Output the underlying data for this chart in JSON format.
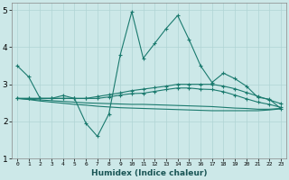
{
  "xlabel": "Humidex (Indice chaleur)",
  "x": [
    0,
    1,
    2,
    3,
    4,
    5,
    6,
    7,
    8,
    9,
    10,
    11,
    12,
    13,
    14,
    15,
    16,
    17,
    18,
    19,
    20,
    21,
    22,
    23
  ],
  "line1": [
    3.5,
    3.2,
    2.62,
    2.62,
    2.7,
    2.62,
    1.95,
    1.6,
    2.2,
    3.8,
    4.95,
    3.7,
    4.1,
    4.5,
    4.85,
    4.2,
    3.5,
    3.05,
    3.3,
    3.15,
    2.95,
    2.65,
    2.6,
    2.35
  ],
  "line2": [
    2.62,
    2.62,
    2.62,
    2.62,
    2.62,
    2.62,
    2.62,
    2.67,
    2.72,
    2.77,
    2.83,
    2.87,
    2.91,
    2.95,
    3.0,
    3.0,
    3.0,
    3.0,
    2.95,
    2.88,
    2.78,
    2.68,
    2.58,
    2.48
  ],
  "line3": [
    2.62,
    2.62,
    2.62,
    2.62,
    2.62,
    2.62,
    2.62,
    2.62,
    2.66,
    2.71,
    2.75,
    2.76,
    2.81,
    2.86,
    2.9,
    2.9,
    2.87,
    2.86,
    2.8,
    2.71,
    2.61,
    2.52,
    2.46,
    2.38
  ],
  "line4": [
    2.62,
    2.6,
    2.58,
    2.56,
    2.54,
    2.52,
    2.5,
    2.49,
    2.48,
    2.47,
    2.46,
    2.46,
    2.45,
    2.44,
    2.43,
    2.42,
    2.41,
    2.4,
    2.38,
    2.36,
    2.35,
    2.33,
    2.33,
    2.35
  ],
  "line5": [
    2.62,
    2.59,
    2.55,
    2.52,
    2.49,
    2.46,
    2.44,
    2.41,
    2.39,
    2.37,
    2.36,
    2.35,
    2.34,
    2.33,
    2.32,
    2.31,
    2.3,
    2.29,
    2.29,
    2.29,
    2.29,
    2.29,
    2.31,
    2.34
  ],
  "color": "#1a7a6e",
  "bg_color": "#cce8e8",
  "grid_color": "#b0d4d4",
  "ylim": [
    1.0,
    5.2
  ],
  "yticks": [
    1,
    2,
    3,
    4,
    5
  ],
  "xlim": [
    -0.5,
    23.5
  ]
}
